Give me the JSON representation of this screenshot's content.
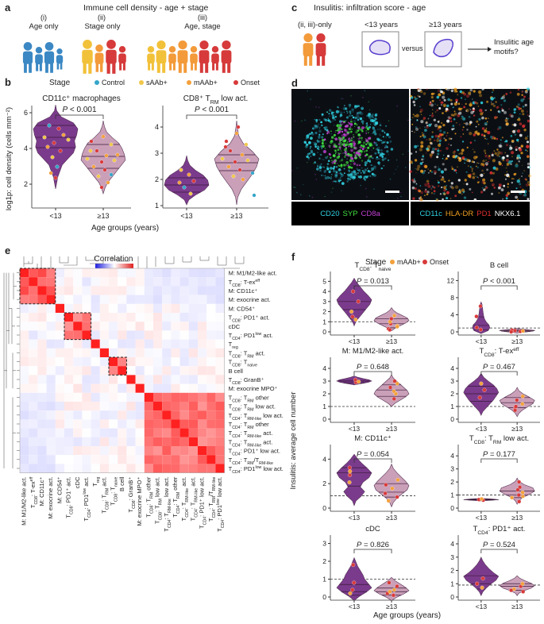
{
  "panel_labels": {
    "a": "a",
    "b": "b",
    "c": "c",
    "d": "d",
    "e": "e",
    "f": "f"
  },
  "panel_a": {
    "title": "Immune cell density - age + stage",
    "groups": [
      {
        "num": "(i)",
        "label": "Age only"
      },
      {
        "num": "(ii)",
        "label": "Stage only"
      },
      {
        "num": "(iii)",
        "label": "Age, stage"
      }
    ]
  },
  "panel_c": {
    "title": "Insulitis: infiltration score - age",
    "group_label": "(ii, iii)-only",
    "box1": "<13 years",
    "versus": "versus",
    "box2": "≥13 years",
    "result": "Insulitic age motifs?"
  },
  "colors": {
    "Control": "#35a6c8",
    "sAAb+": "#f1c84b",
    "mAAb+": "#f3a13c",
    "Onset": "#d83a3a",
    "violin_young": "#7b3b8c",
    "violin_old": "#caa0b8"
  },
  "panel_b": {
    "legend_title": "Stage",
    "legend": [
      "Control",
      "sAAb+",
      "mAAb+",
      "Onset"
    ],
    "ylabel": "log1p: cell density (cells mm⁻²)",
    "xlabel": "Age groups (years)",
    "plots": [
      {
        "title": "CD11c⁺ macrophages",
        "p": "P < 0.001",
        "yticks": [
          "2",
          "4",
          "6"
        ],
        "xticks": [
          "<13",
          "≥13"
        ]
      },
      {
        "title": "CD8⁺ T_RM low act.",
        "p": "P < 0.001",
        "yticks": [
          "1",
          "2",
          "3",
          "4"
        ],
        "xticks": [
          "<13",
          "≥13"
        ]
      }
    ]
  },
  "panel_d": {
    "left_caption": [
      {
        "t": "CD20",
        "c": "#2fd0e0"
      },
      {
        "t": "SYP",
        "c": "#40e040"
      },
      {
        "t": "CD8a",
        "c": "#c040d0"
      }
    ],
    "right_caption": [
      {
        "t": "CD11c",
        "c": "#2fd0e0"
      },
      {
        "t": "HLA-DR",
        "c": "#f0a020"
      },
      {
        "t": "PD1",
        "c": "#e03030"
      },
      {
        "t": "NKX6.1",
        "c": "#ffffff"
      }
    ]
  },
  "panel_e": {
    "title": "Correlation",
    "scale_ticks": [
      "−1",
      "0.5",
      "0",
      "0.5",
      "1"
    ],
    "rows": [
      "M: M1/M2-like act.",
      "T_CD8: T-ex^eff",
      "M: CD11c⁺",
      "M: exocrine act.",
      "M: CD54⁺",
      "T_CD8: PD1⁺ act.",
      "cDC",
      "T_CD4: PD1^low act.",
      "T_reg",
      "T_CD8: T_RM act.",
      "T_CD8: T_naive",
      "B cell",
      "T_CD8: GranB⁺",
      "M: exocrine MPO⁺",
      "T_CD8: T_RM other",
      "T_CD8: T_RM low act.",
      "T_CD4: T_RM-like low act.",
      "T_CD4: T_RM other",
      "T_CD4: T_RM-like act.",
      "T_CD4: T_RM-like act.",
      "T_CD4: PD1⁺ low act.",
      "T_CD4: T_RM/T_RM-like",
      "T_CD4: PD1^low low act."
    ],
    "cols": [
      "M: M1/M2-like act.",
      "T_CD8: T-ex^eff",
      "M: CD11c⁺",
      "M: exocrine act.",
      "M: CD54⁺",
      "T_CD8: PD1⁺ act.",
      "cDC",
      "T_CD4: PD1^low act.",
      "T_reg",
      "T_CD8: T_RM act.",
      "T_CD8: T_naive",
      "B cell",
      "T_CD8: GranB⁺",
      "M: exocrine MPO⁺",
      "T_CD8: T_RM other",
      "T_CD8: T_RM low act.",
      "T_CD4: T_RM-like low act.",
      "T_CD4: T_RM other",
      "T_CD4: T_RM-like act.",
      "T_CD4: T_RM-like act.",
      "T_CD4: PD1⁺ low act.",
      "T_CD4: T_RM/T_RM-like",
      "T_CD4: PD1^low low act."
    ]
  },
  "panel_f": {
    "legend_title": "Stage",
    "legend": [
      "mAAb+",
      "Onset"
    ],
    "ylabel": "Insulitis: average cell number",
    "xlabel": "Age groups (years)",
    "plots": [
      {
        "title": "T_CD8: T_naive",
        "p": "P = 0.013",
        "yticks": [
          "0",
          "1",
          "2",
          "3",
          "4",
          "5"
        ],
        "xticks": [
          "<13",
          "≥13"
        ]
      },
      {
        "title": "B cell",
        "p": "P < 0.001",
        "yticks": [
          "0",
          "4",
          "8",
          "12"
        ],
        "xticks": [
          "<13",
          "≥13"
        ]
      },
      {
        "title": "M: M1/M2-like act.",
        "p": "P = 0.648",
        "yticks": [
          "0",
          "1",
          "2",
          "3",
          "4"
        ],
        "xticks": [
          "<13",
          "≥13"
        ]
      },
      {
        "title": "T_CD8: T-ex^eff",
        "p": "P = 0.467",
        "yticks": [
          "0",
          "1",
          "2",
          "3",
          "4"
        ],
        "xticks": [
          "<13",
          "≥13"
        ]
      },
      {
        "title": "M: CD11c⁺",
        "p": "P = 0.054",
        "yticks": [
          "0",
          "2",
          "4"
        ],
        "xticks": [
          "<13",
          "≥13"
        ]
      },
      {
        "title": "T_CD8: T_RM low act.",
        "p": "P = 0.177",
        "yticks": [
          "0",
          "1",
          "2",
          "3",
          "4"
        ],
        "xticks": [
          "<13",
          "≥13"
        ]
      },
      {
        "title": "cDC",
        "p": "P = 0.826",
        "yticks": [
          "0",
          "1",
          "2",
          "3"
        ],
        "xticks": [
          "<13",
          "≥13"
        ]
      },
      {
        "title": "T_CD4: PD1⁺ act.",
        "p": "P = 0.524",
        "yticks": [
          "0",
          "1",
          "2",
          "3",
          "4"
        ],
        "xticks": [
          "<13",
          "≥13"
        ]
      }
    ]
  }
}
